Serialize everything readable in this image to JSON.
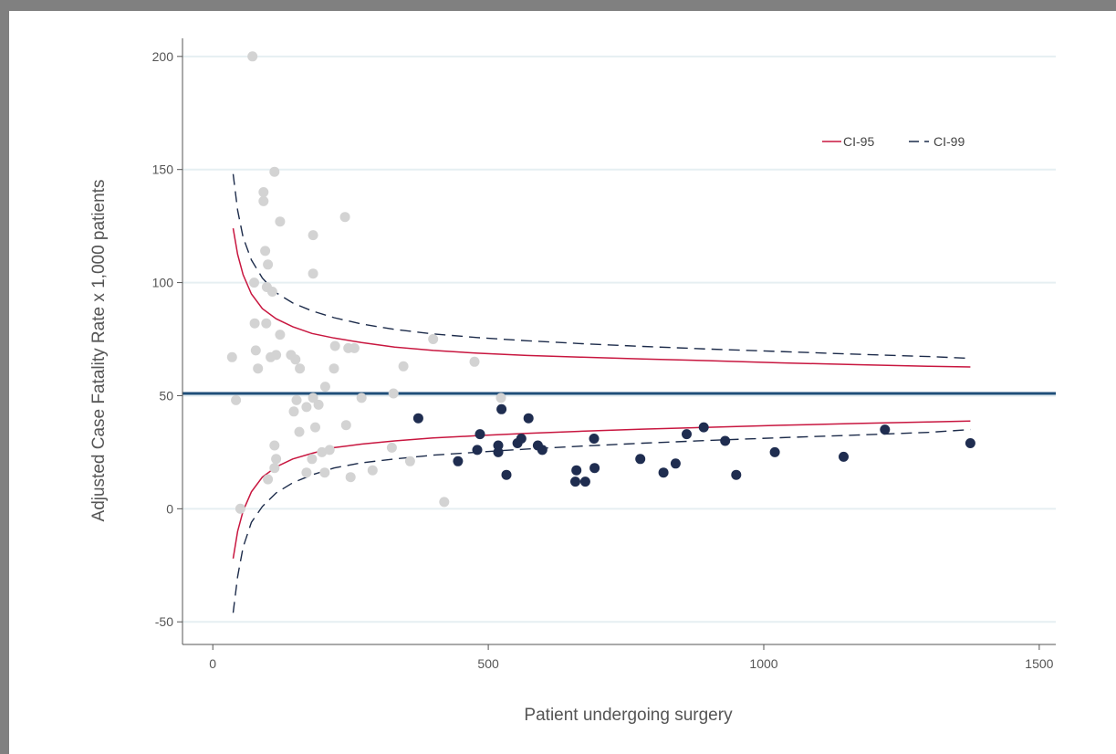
{
  "chart_data": {
    "type": "scatter",
    "xlabel": "Patient undergoing surgery",
    "ylabel": "Adjusted Case Fatality Rate x 1,000 patients",
    "xlim": [
      -55,
      1530
    ],
    "ylim": [
      -60,
      208
    ],
    "x_ticks": [
      0,
      500,
      1000,
      1500
    ],
    "y_ticks": [
      -50,
      0,
      50,
      100,
      150,
      200
    ],
    "grid": "horizontal",
    "legend_position": "top-right",
    "reference_line": {
      "y": 51,
      "color": "#1f4e79"
    },
    "colors": {
      "ci95": "#c8163f",
      "ci99": "#1c2b4a",
      "points_grey": "#d3d3d3",
      "points_navy": "#1f2d50",
      "grid": "#e6eff2",
      "axis": "#555555"
    },
    "legend": [
      {
        "name": "CI-95",
        "style": "solid",
        "color_key": "ci95"
      },
      {
        "name": "CI-99",
        "style": "dashed",
        "color_key": "ci99"
      }
    ],
    "ci_curves": {
      "x": [
        37,
        45,
        55,
        70,
        90,
        115,
        145,
        180,
        220,
        270,
        330,
        400,
        480,
        570,
        670,
        780,
        900,
        1030,
        1170,
        1300,
        1375
      ],
      "ci95_upper": [
        124,
        112.5,
        103.5,
        95,
        88.5,
        84,
        80.5,
        77.5,
        75.5,
        73.5,
        71.5,
        70,
        68.8,
        67.8,
        67,
        66.2,
        65.5,
        64.5,
        63.7,
        63,
        62.7
      ],
      "ci95_lower": [
        -22,
        -10,
        -1,
        7.5,
        14,
        18.5,
        22,
        24.5,
        27,
        28.6,
        30,
        31.3,
        32.3,
        33.3,
        34.3,
        35.2,
        36,
        36.9,
        37.7,
        38.4,
        38.8
      ],
      "ci99_upper": [
        148,
        132,
        120,
        110,
        102,
        95.5,
        91,
        87.5,
        84.5,
        81.7,
        79.3,
        77.3,
        75.7,
        74.3,
        73,
        71.8,
        70.6,
        69.5,
        68.3,
        67.3,
        66.5
      ],
      "ci99_lower": [
        -46,
        -30,
        -17,
        -6,
        1,
        7,
        11.5,
        15,
        18,
        20.3,
        22,
        23.7,
        25,
        26.4,
        27.7,
        29,
        30.2,
        31.4,
        32.6,
        33.8,
        35
      ]
    },
    "series": [
      {
        "group": "within_limits",
        "color_key": "points_grey",
        "points": [
          [
            35,
            67
          ],
          [
            42,
            48
          ],
          [
            50,
            0
          ],
          [
            72,
            200
          ],
          [
            75,
            100
          ],
          [
            76,
            82
          ],
          [
            78,
            70
          ],
          [
            82,
            62
          ],
          [
            92,
            140
          ],
          [
            92,
            136
          ],
          [
            95,
            114
          ],
          [
            97,
            82
          ],
          [
            98,
            98
          ],
          [
            100,
            13
          ],
          [
            100,
            108
          ],
          [
            105,
            67
          ],
          [
            108,
            96
          ],
          [
            112,
            149
          ],
          [
            112,
            28
          ],
          [
            112,
            18
          ],
          [
            115,
            22
          ],
          [
            115,
            68
          ],
          [
            122,
            77
          ],
          [
            122,
            127
          ],
          [
            142,
            68
          ],
          [
            147,
            43
          ],
          [
            150,
            66
          ],
          [
            152,
            48
          ],
          [
            157,
            34
          ],
          [
            158,
            62
          ],
          [
            170,
            16
          ],
          [
            170,
            45
          ],
          [
            180,
            22
          ],
          [
            182,
            121
          ],
          [
            182,
            104
          ],
          [
            182,
            49
          ],
          [
            186,
            36
          ],
          [
            192,
            46
          ],
          [
            198,
            25
          ],
          [
            203,
            16
          ],
          [
            204,
            54
          ],
          [
            212,
            26
          ],
          [
            220,
            62
          ],
          [
            222,
            72
          ],
          [
            240,
            129
          ],
          [
            242,
            37
          ],
          [
            246,
            71
          ],
          [
            250,
            14
          ],
          [
            257,
            71
          ],
          [
            270,
            49
          ],
          [
            290,
            17
          ],
          [
            325,
            27
          ],
          [
            328,
            51
          ],
          [
            346,
            63
          ],
          [
            358,
            21
          ],
          [
            400,
            75
          ],
          [
            420,
            3
          ],
          [
            475,
            65
          ],
          [
            523,
            49
          ]
        ]
      },
      {
        "group": "below_limits",
        "color_key": "points_navy",
        "points": [
          [
            373,
            40
          ],
          [
            445,
            21
          ],
          [
            480,
            26
          ],
          [
            485,
            33
          ],
          [
            518,
            28
          ],
          [
            518,
            25
          ],
          [
            524,
            44
          ],
          [
            533,
            15
          ],
          [
            553,
            29
          ],
          [
            560,
            31
          ],
          [
            573,
            40
          ],
          [
            590,
            28
          ],
          [
            598,
            26
          ],
          [
            658,
            12
          ],
          [
            660,
            17
          ],
          [
            676,
            12
          ],
          [
            692,
            31
          ],
          [
            693,
            18
          ],
          [
            776,
            22
          ],
          [
            818,
            16
          ],
          [
            840,
            20
          ],
          [
            860,
            33
          ],
          [
            891,
            36
          ],
          [
            930,
            30
          ],
          [
            950,
            15
          ],
          [
            1020,
            25
          ],
          [
            1145,
            23
          ],
          [
            1220,
            35
          ],
          [
            1375,
            29
          ]
        ]
      }
    ]
  }
}
